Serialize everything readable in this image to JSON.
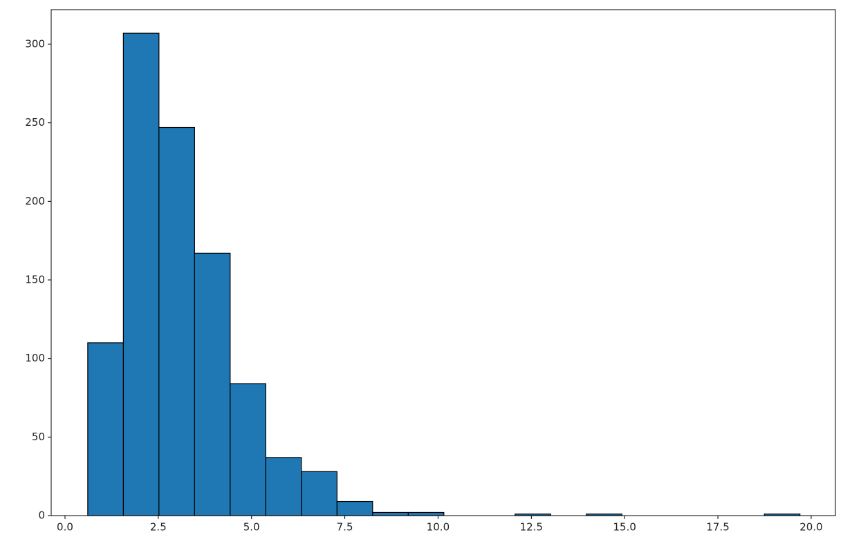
{
  "chart_data": {
    "type": "histogram",
    "bins": [
      0.61,
      1.565,
      2.519,
      3.474,
      4.428,
      5.383,
      6.337,
      7.292,
      8.246,
      9.201,
      10.155,
      11.11,
      12.064,
      13.019,
      13.973,
      14.928,
      15.882,
      16.837,
      17.791,
      18.746,
      19.7
    ],
    "values": [
      110,
      307,
      247,
      167,
      84,
      37,
      28,
      9,
      2,
      2,
      0,
      0,
      1,
      0,
      1,
      0,
      0,
      0,
      0,
      1
    ],
    "color": "#1f77b4",
    "edgecolor": "#000000",
    "xlim": [
      -0.37,
      20.65
    ],
    "ylim": [
      0,
      322
    ],
    "xticks": [
      {
        "value": 0,
        "label": "0.0"
      },
      2.5,
      {
        "value": 5,
        "label": "5.0"
      },
      7.5,
      {
        "value": 10,
        "label": "10.0"
      },
      12.5,
      {
        "value": 15,
        "label": "15.0"
      },
      17.5,
      {
        "value": 20,
        "label": "20.0"
      }
    ],
    "yticks": [
      0,
      50,
      100,
      150,
      200,
      250,
      300
    ],
    "grid": false
  }
}
